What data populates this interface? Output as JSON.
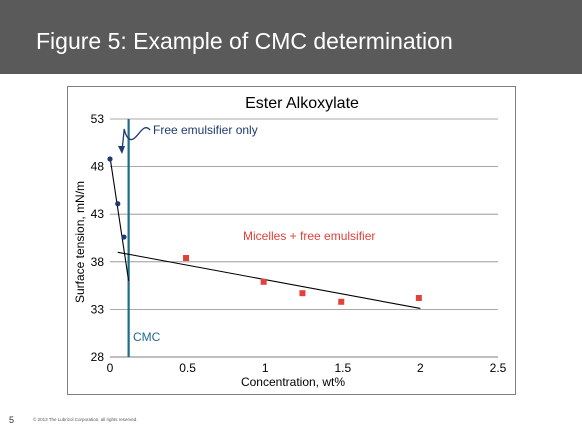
{
  "slide": {
    "title": "Figure 5:  Example of CMC determination",
    "page_number": "5",
    "copyright": "© 2013 The Lubrizol Corporation, all rights reserved."
  },
  "colors": {
    "header_bg": "#5a5a5a",
    "series_blue": "#1f3a6e",
    "series_red": "#e0413a",
    "cmc_line": "#1e6b8a",
    "trend_line": "#000000",
    "grid": "#8c8c8c"
  },
  "chart_data": {
    "type": "scatter",
    "title": "Ester Alkoxylate",
    "xlabel": "Concentration, wt%",
    "ylabel": "Surface tension, mN/m",
    "xlim": [
      0,
      2.5
    ],
    "ylim": [
      28,
      53
    ],
    "xticks": [
      0,
      0.5,
      1,
      1.5,
      2,
      2.5
    ],
    "xtick_labels": [
      "0",
      "0.5",
      "1",
      "1.5",
      "2",
      "2.5"
    ],
    "yticks": [
      28,
      33,
      38,
      43,
      48,
      53
    ],
    "ytick_labels": [
      "28",
      "33",
      "38",
      "43",
      "48",
      "53"
    ],
    "grid": "horizontal",
    "series": [
      {
        "marker": "circle",
        "color": "#1f3a6e",
        "points": [
          {
            "x": 0.0,
            "y": 48.8
          },
          {
            "x": 0.05,
            "y": 44.1
          },
          {
            "x": 0.09,
            "y": 40.6
          }
        ]
      },
      {
        "marker": "square",
        "color": "#e0413a",
        "points": [
          {
            "x": 0.49,
            "y": 38.4
          },
          {
            "x": 0.99,
            "y": 35.9
          },
          {
            "x": 1.24,
            "y": 34.7
          },
          {
            "x": 1.49,
            "y": 33.8
          },
          {
            "x": 1.99,
            "y": 34.2
          }
        ]
      }
    ],
    "lines": [
      {
        "from": {
          "x": 0.0,
          "y": 49.0
        },
        "to": {
          "x": 0.12,
          "y": 36.0
        },
        "color": "#000000"
      },
      {
        "from": {
          "x": 0.05,
          "y": 39.0
        },
        "to": {
          "x": 2.0,
          "y": 33.1
        },
        "color": "#000000"
      }
    ],
    "cmc": {
      "x": 0.12,
      "label": "CMC"
    },
    "annotations": [
      {
        "text": "Free emulsifier only",
        "color": "#1f3a6e"
      },
      {
        "text": "Micelles + free emulsifier",
        "color": "#e0413a"
      }
    ]
  }
}
